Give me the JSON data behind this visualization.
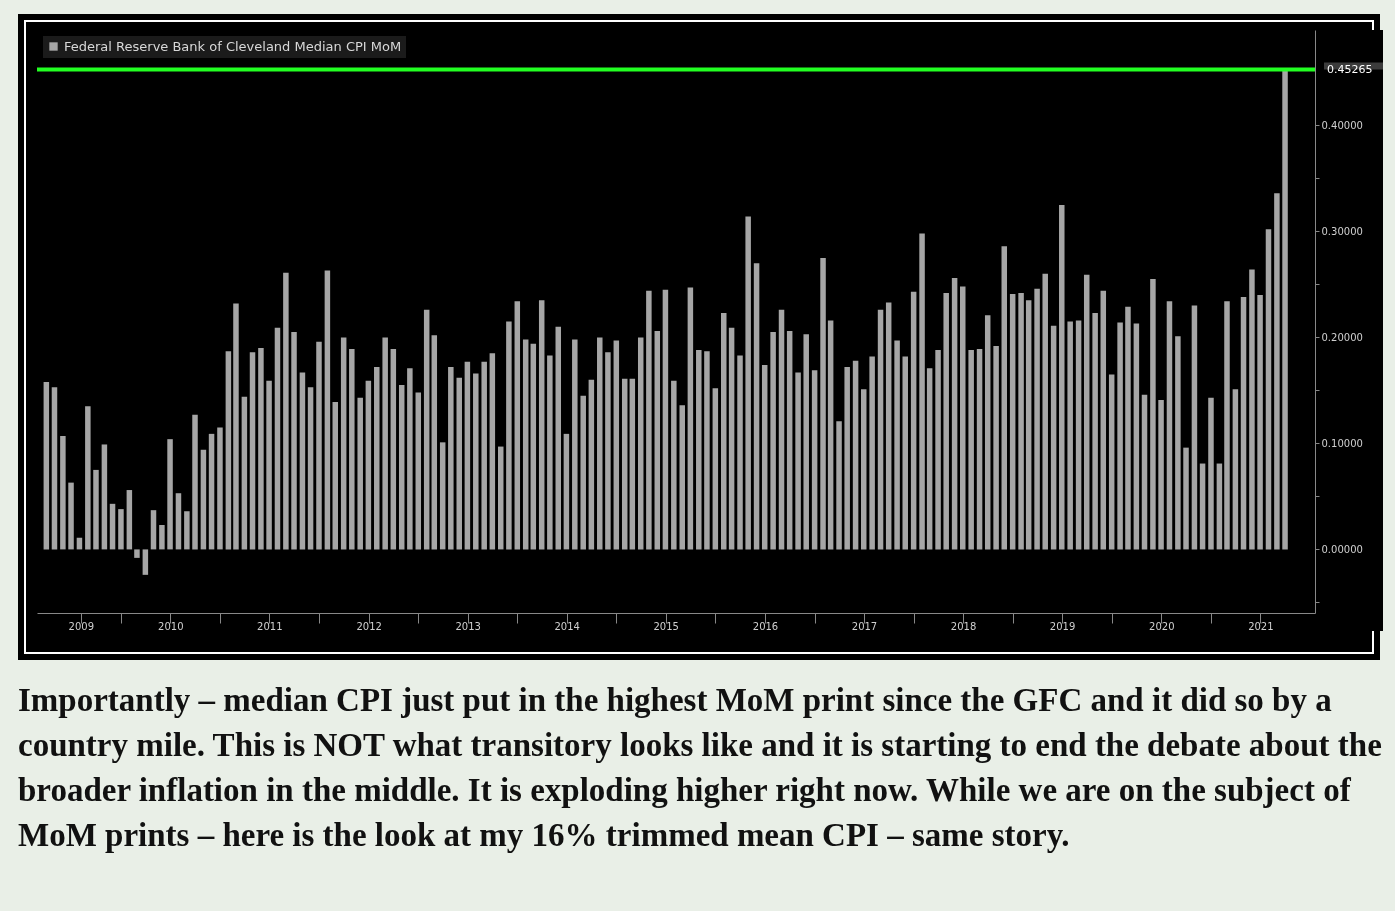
{
  "chart_data": {
    "type": "bar",
    "legend": "top left",
    "grid": false,
    "x": [
      "2009-04",
      "2009-05",
      "2009-06",
      "2009-07",
      "2009-08",
      "2009-09",
      "2009-10",
      "2009-11",
      "2009-12",
      "2010-01",
      "2010-02",
      "2010-03",
      "2010-04",
      "2010-05",
      "2010-06",
      "2010-07",
      "2010-08",
      "2010-09",
      "2010-10",
      "2010-11",
      "2010-12",
      "2011-01",
      "2011-02",
      "2011-03",
      "2011-04",
      "2011-05",
      "2011-06",
      "2011-07",
      "2011-08",
      "2011-09",
      "2011-10",
      "2011-11",
      "2011-12",
      "2012-01",
      "2012-02",
      "2012-03",
      "2012-04",
      "2012-05",
      "2012-06",
      "2012-07",
      "2012-08",
      "2012-09",
      "2012-10",
      "2012-11",
      "2012-12",
      "2013-01",
      "2013-02",
      "2013-03",
      "2013-04",
      "2013-05",
      "2013-06",
      "2013-07",
      "2013-08",
      "2013-09",
      "2013-10",
      "2013-11",
      "2013-12",
      "2014-01",
      "2014-02",
      "2014-03",
      "2014-04",
      "2014-05",
      "2014-06",
      "2014-07",
      "2014-08",
      "2014-09",
      "2014-10",
      "2014-11",
      "2014-12",
      "2015-01",
      "2015-02",
      "2015-03",
      "2015-04",
      "2015-05",
      "2015-06",
      "2015-07",
      "2015-08",
      "2015-09",
      "2015-10",
      "2015-11",
      "2015-12",
      "2016-01",
      "2016-02",
      "2016-03",
      "2016-04",
      "2016-05",
      "2016-06",
      "2016-07",
      "2016-08",
      "2016-09",
      "2016-10",
      "2016-11",
      "2016-12",
      "2017-01",
      "2017-02",
      "2017-03",
      "2017-04",
      "2017-05",
      "2017-06",
      "2017-07",
      "2017-08",
      "2017-09",
      "2017-10",
      "2017-11",
      "2017-12",
      "2018-01",
      "2018-02",
      "2018-03",
      "2018-04",
      "2018-05",
      "2018-06",
      "2018-07",
      "2018-08",
      "2018-09",
      "2018-10",
      "2018-11",
      "2018-12",
      "2019-01",
      "2019-02",
      "2019-03",
      "2019-04",
      "2019-05",
      "2019-06",
      "2019-07",
      "2019-08",
      "2019-09",
      "2019-10",
      "2019-11",
      "2019-12",
      "2020-01",
      "2020-02",
      "2020-03",
      "2020-04",
      "2020-05",
      "2020-06",
      "2020-07",
      "2020-08",
      "2020-09",
      "2020-10",
      "2020-11",
      "2020-12",
      "2021-01",
      "2021-02",
      "2021-03",
      "2021-04",
      "2021-05",
      "2021-06",
      "2021-07",
      "2021-08",
      "2021-09",
      "2021-10"
    ],
    "series": [
      {
        "name": "Federal Reserve Bank of Cleveland Median CPI MoM",
        "color": "#a6a6a6",
        "values": [
          0.158,
          0.153,
          0.107,
          0.063,
          0.011,
          0.135,
          0.075,
          0.099,
          0.043,
          0.038,
          0.056,
          -0.008,
          -0.024,
          0.037,
          0.023,
          0.104,
          0.053,
          0.036,
          0.127,
          0.094,
          0.109,
          0.115,
          0.187,
          0.232,
          0.144,
          0.186,
          0.19,
          0.159,
          0.209,
          0.261,
          0.205,
          0.167,
          0.153,
          0.196,
          0.263,
          0.139,
          0.2,
          0.189,
          0.143,
          0.159,
          0.172,
          0.2,
          0.189,
          0.155,
          0.171,
          0.148,
          0.226,
          0.202,
          0.101,
          0.172,
          0.162,
          0.177,
          0.166,
          0.177,
          0.185,
          0.097,
          0.215,
          0.234,
          0.198,
          0.194,
          0.235,
          0.183,
          0.21,
          0.109,
          0.198,
          0.145,
          0.16,
          0.2,
          0.186,
          0.197,
          0.161,
          0.161,
          0.2,
          0.244,
          0.206,
          0.245,
          0.159,
          0.136,
          0.247,
          0.188,
          0.187,
          0.152,
          0.223,
          0.209,
          0.183,
          0.314,
          0.27,
          0.174,
          0.205,
          0.226,
          0.206,
          0.167,
          0.203,
          0.169,
          0.275,
          0.216,
          0.121,
          0.172,
          0.178,
          0.151,
          0.182,
          0.226,
          0.233,
          0.197,
          0.182,
          0.243,
          0.298,
          0.171,
          0.188,
          0.242,
          0.256,
          0.248,
          0.188,
          0.189,
          0.221,
          0.192,
          0.286,
          0.241,
          0.242,
          0.235,
          0.246,
          0.26,
          0.211,
          0.325,
          0.215,
          0.216,
          0.259,
          0.223,
          0.244,
          0.165,
          0.214,
          0.229,
          0.213,
          0.146,
          0.255,
          0.141,
          0.234,
          0.201,
          0.096,
          0.23,
          0.081,
          0.143,
          0.081,
          0.234,
          0.151,
          0.238,
          0.264,
          0.24,
          0.302,
          0.336,
          0.45265
        ]
      }
    ],
    "xlim": [
      "2009-03-16",
      "2022-01-01"
    ],
    "xticks": [
      {
        "value": "2009-08-06",
        "label": "2009"
      },
      {
        "value": "2010-01-01",
        "label": null
      },
      {
        "value": "2010-07-02",
        "label": "2010"
      },
      {
        "value": "2011-01-01",
        "label": null
      },
      {
        "value": "2011-07-02",
        "label": "2011"
      },
      {
        "value": "2012-01-01",
        "label": null
      },
      {
        "value": "2012-07-02",
        "label": "2012"
      },
      {
        "value": "2013-01-01",
        "label": null
      },
      {
        "value": "2013-07-02",
        "label": "2013"
      },
      {
        "value": "2014-01-01",
        "label": null
      },
      {
        "value": "2014-07-02",
        "label": "2014"
      },
      {
        "value": "2015-01-01",
        "label": null
      },
      {
        "value": "2015-07-02",
        "label": "2015"
      },
      {
        "value": "2016-01-01",
        "label": null
      },
      {
        "value": "2016-07-02",
        "label": "2016"
      },
      {
        "value": "2017-01-01",
        "label": null
      },
      {
        "value": "2017-07-02",
        "label": "2017"
      },
      {
        "value": "2018-01-01",
        "label": null
      },
      {
        "value": "2018-07-02",
        "label": "2018"
      },
      {
        "value": "2019-01-01",
        "label": null
      },
      {
        "value": "2019-07-02",
        "label": "2019"
      },
      {
        "value": "2020-01-01",
        "label": null
      },
      {
        "value": "2020-07-02",
        "label": "2020"
      },
      {
        "value": "2021-01-01",
        "label": null
      },
      {
        "value": "2021-07-02",
        "label": "2021"
      }
    ],
    "ylim": [
      -0.06,
      0.49
    ],
    "yticks": [
      {
        "value": -0.05,
        "label": null
      },
      {
        "value": 0,
        "label": "0.00000"
      },
      {
        "value": 0.05,
        "label": null
      },
      {
        "value": 0.1,
        "label": "0.10000"
      },
      {
        "value": 0.15,
        "label": null
      },
      {
        "value": 0.2,
        "label": "0.20000"
      },
      {
        "value": 0.25,
        "label": null
      },
      {
        "value": 0.3,
        "label": "0.30000"
      },
      {
        "value": 0.35,
        "label": null
      },
      {
        "value": 0.4,
        "label": "0.40000"
      }
    ],
    "ref_lines": [
      {
        "axis": "y",
        "value": 0.45265,
        "label": "0.45265",
        "color": "#22ff22"
      }
    ],
    "annotations": [
      "Importantly – median CPI just put in the highest MoM print since the GFC and it did so by a country mile. This is NOT what transitory looks like and it is starting to end the debate about the broader inflation in the middle. It is exploding higher right now. While we are on the subject of MoM prints – here is the look at my 16% trimmed mean CPI – same story."
    ]
  }
}
